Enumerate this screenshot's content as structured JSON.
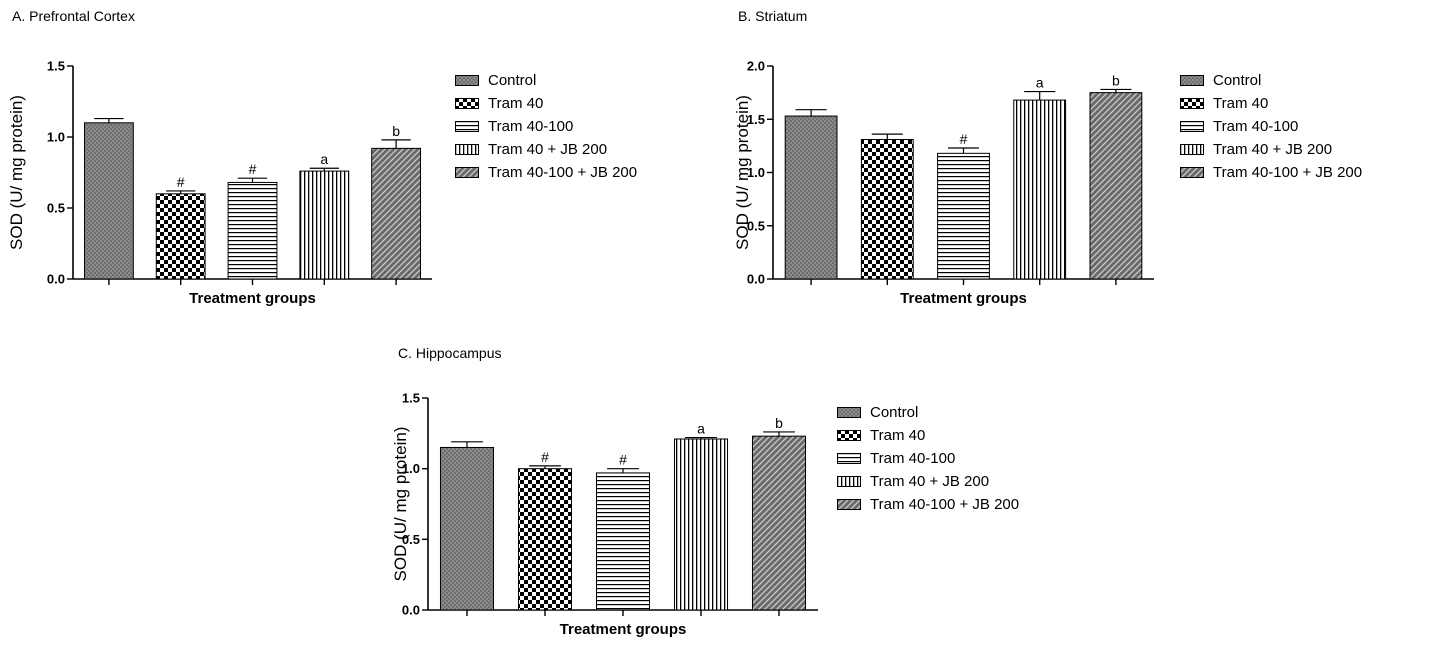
{
  "chart_data": [
    {
      "type": "bar",
      "title": "A. Prefrontal Cortex",
      "xlabel": "Treatment groups",
      "ylabel": "SOD (U/ mg protein)",
      "ylim": [
        0,
        1.5
      ],
      "yticks": [
        "0.0",
        "0.5",
        "1.0",
        "1.5"
      ],
      "categories": [
        "Control",
        "Tram 40",
        "Tram 40-100",
        "Tram 40 + JB 200",
        "Tram 40-100 + JB 200"
      ],
      "values": [
        1.1,
        0.6,
        0.68,
        0.76,
        0.92
      ],
      "errors": [
        0.03,
        0.02,
        0.03,
        0.02,
        0.06
      ],
      "annotations": [
        "",
        "#",
        "#",
        "a",
        "b"
      ],
      "legend": [
        "Control",
        "Tram 40",
        "Tram 40-100",
        "Tram 40 + JB 200",
        "Tram 40-100 + JB 200"
      ],
      "legend_position": "right"
    },
    {
      "type": "bar",
      "title": "B. Striatum",
      "xlabel": "Treatment groups",
      "ylabel": "SOD (U/ mg protein)",
      "ylim": [
        0,
        2.0
      ],
      "yticks": [
        "0.0",
        "0.5",
        "1.0",
        "1.5",
        "2.0"
      ],
      "categories": [
        "Control",
        "Tram 40",
        "Tram 40-100",
        "Tram 40 + JB 200",
        "Tram 40-100 + JB 200"
      ],
      "values": [
        1.53,
        1.31,
        1.18,
        1.68,
        1.75
      ],
      "errors": [
        0.06,
        0.05,
        0.05,
        0.08,
        0.03
      ],
      "annotations": [
        "",
        "",
        "#",
        "a",
        "b"
      ],
      "legend": [
        "Control",
        "Tram 40",
        "Tram 40-100",
        "Tram 40 + JB 200",
        "Tram 40-100 + JB 200"
      ],
      "legend_position": "right"
    },
    {
      "type": "bar",
      "title": "C. Hippocampus",
      "xlabel": "Treatment groups",
      "ylabel": "SOD (U/ mg protein)",
      "ylim": [
        0,
        1.5
      ],
      "yticks": [
        "0.0",
        "0.5",
        "1.0",
        "1.5"
      ],
      "categories": [
        "Control",
        "Tram 40",
        "Tram 40-100",
        "Tram 40 + JB 200",
        "Tram 40-100 + JB 200"
      ],
      "values": [
        1.15,
        1.0,
        0.97,
        1.21,
        1.23
      ],
      "errors": [
        0.04,
        0.02,
        0.03,
        0.01,
        0.03
      ],
      "annotations": [
        "",
        "#",
        "#",
        "a",
        "b"
      ],
      "legend": [
        "Control",
        "Tram 40",
        "Tram 40-100",
        "Tram 40 + JB 200",
        "Tram 40-100 + JB 200"
      ],
      "legend_position": "right"
    }
  ]
}
